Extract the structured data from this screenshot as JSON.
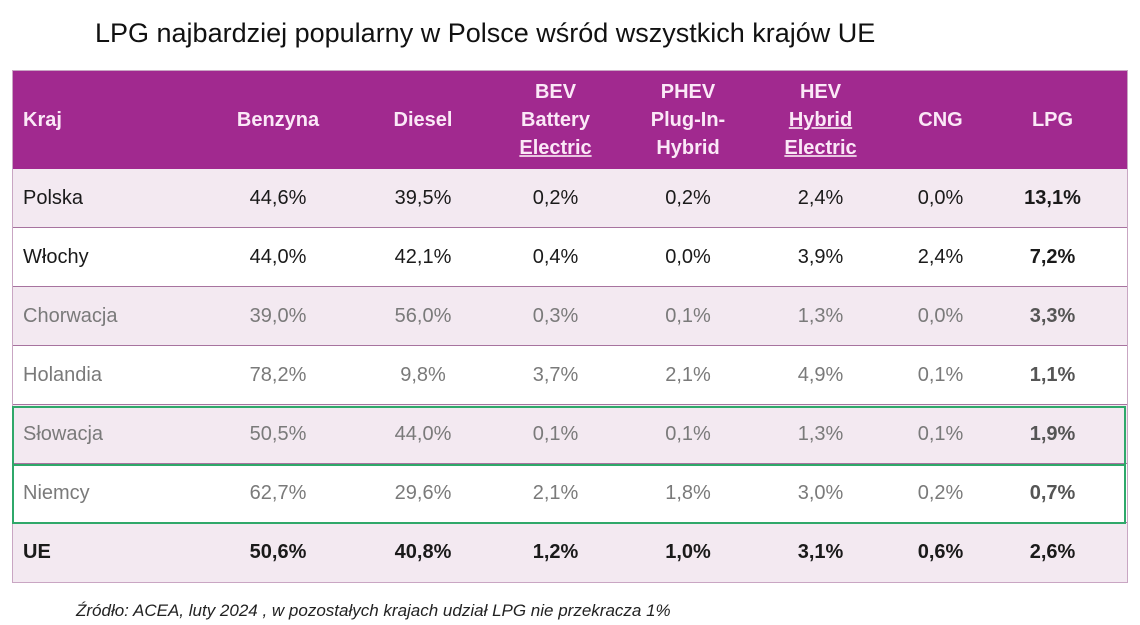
{
  "title": "LPG najbardziej popularny w Polsce wśród wszystkich krajów UE",
  "table": {
    "headers": [
      [
        "Kraj"
      ],
      [
        "Benzyna"
      ],
      [
        "Diesel"
      ],
      [
        "BEV",
        "Battery",
        "Electric"
      ],
      [
        "PHEV",
        "Plug-In-",
        "Hybrid"
      ],
      [
        "HEV",
        "Hybrid",
        "Electric"
      ],
      [
        "CNG"
      ],
      [
        "LPG"
      ]
    ],
    "rows": [
      [
        "Polska",
        "44,6%",
        "39,5%",
        "0,2%",
        "0,2%",
        "2,4%",
        "0,0%",
        "13,1%"
      ],
      [
        "Włochy",
        "44,0%",
        "42,1%",
        "0,4%",
        "0,0%",
        "3,9%",
        "2,4%",
        "7,2%"
      ],
      [
        "Chorwacja",
        "39,0%",
        "56,0%",
        "0,3%",
        "0,1%",
        "1,3%",
        "0,0%",
        "3,3%"
      ],
      [
        "Holandia",
        "78,2%",
        "9,8%",
        "3,7%",
        "2,1%",
        "4,9%",
        "0,1%",
        "1,1%"
      ],
      [
        "Słowacja",
        "50,5%",
        "44,0%",
        "0,1%",
        "0,1%",
        "1,3%",
        "0,1%",
        "1,9%"
      ],
      [
        "Niemcy",
        "62,7%",
        "29,6%",
        "2,1%",
        "1,8%",
        "3,0%",
        "0,2%",
        "0,7%"
      ],
      [
        "UE",
        "50,6%",
        "40,8%",
        "1,2%",
        "1,0%",
        "3,1%",
        "0,6%",
        "2,6%"
      ]
    ]
  },
  "highlighted_rows": [
    "Słowacja",
    "Niemcy"
  ],
  "colors": {
    "header": "#a1298f",
    "highlight_border": "#2fa86a",
    "row_alt": "#f3e9f1"
  },
  "source": "Źródło: ACEA, luty 2024 , w pozostałych krajach udział LPG nie przekracza 1%"
}
